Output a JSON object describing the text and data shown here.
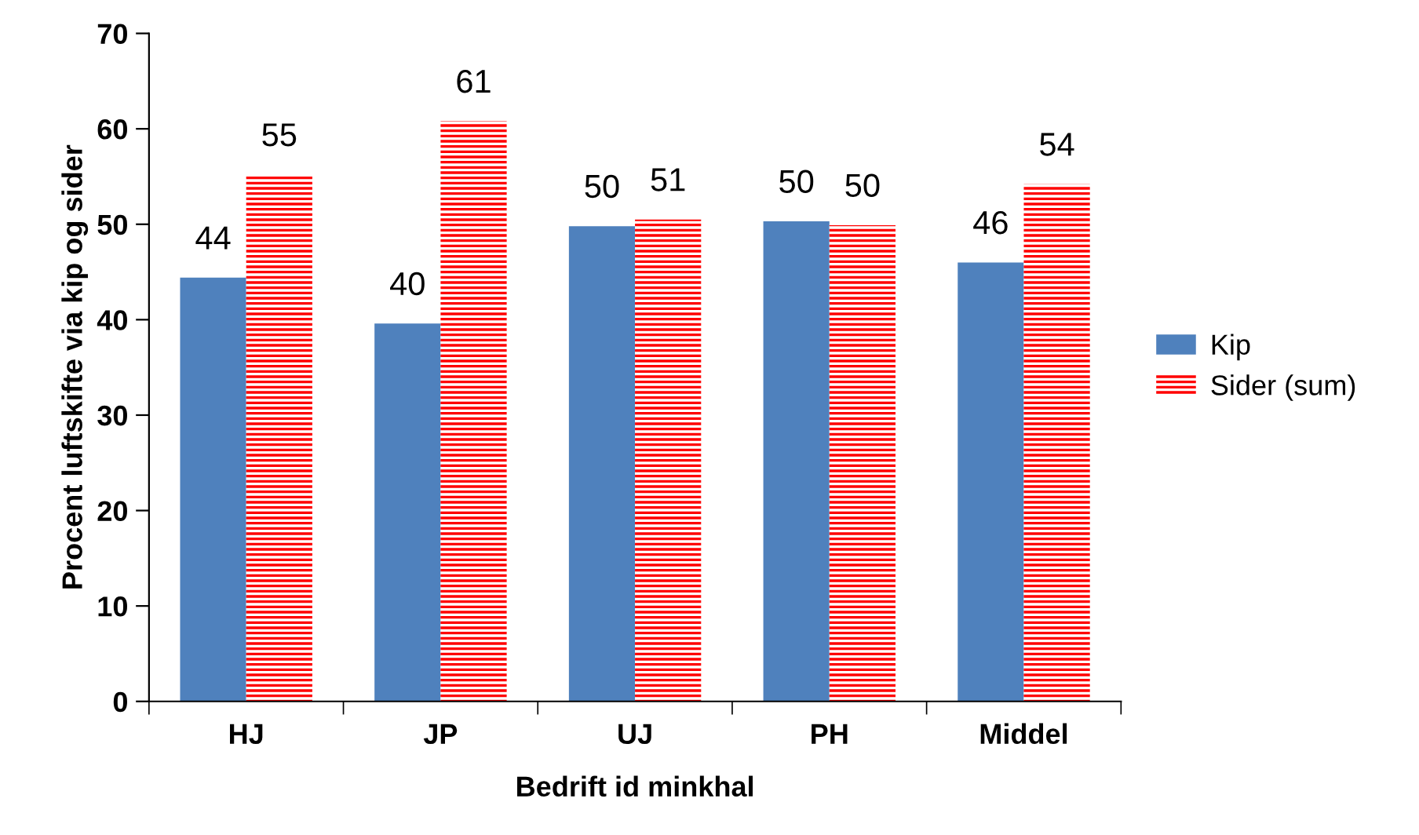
{
  "chart_data": {
    "type": "bar",
    "xlabel": "Bedrift id minkhal",
    "ylabel": "Procent luftskifte via kip og sider",
    "categories": [
      "HJ",
      "JP",
      "UJ",
      "PH",
      "Middel"
    ],
    "series": [
      {
        "name": "Kip",
        "color": "#4f81bd",
        "values": [
          44.4,
          39.6,
          49.8,
          50.3,
          46.0
        ],
        "value_labels": [
          "44",
          "40",
          "50",
          "50",
          "46"
        ]
      },
      {
        "name": "Sider (sum)",
        "color": "#ff0000",
        "values": [
          55.2,
          60.8,
          50.5,
          49.9,
          54.2
        ],
        "value_labels": [
          "55",
          "61",
          "51",
          "50",
          "54"
        ]
      }
    ],
    "ylim": [
      0,
      70
    ],
    "yticks": [
      0,
      10,
      20,
      30,
      40,
      50,
      60,
      70
    ],
    "grid": false,
    "legend": "right"
  }
}
